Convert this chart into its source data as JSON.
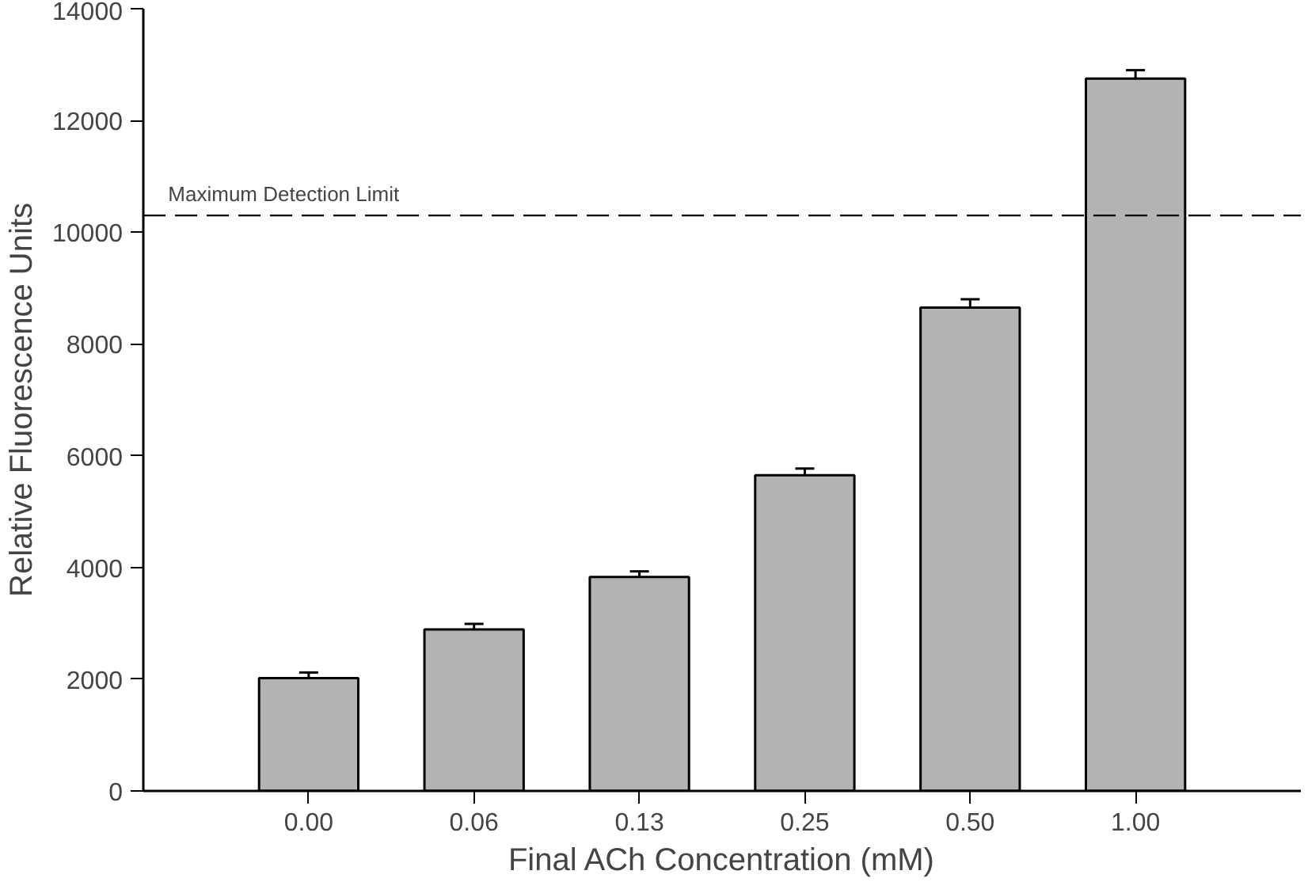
{
  "chart_data": {
    "type": "bar",
    "xlabel": "Final ACh Concentration (mM)",
    "ylabel": "Relative Fluorescence Units",
    "categories": [
      "0.00",
      "0.06",
      "0.13",
      "0.25",
      "0.50",
      "1.00"
    ],
    "values": [
      2020,
      2890,
      3830,
      5650,
      8650,
      12750
    ],
    "errors": [
      100,
      100,
      100,
      120,
      150,
      150
    ],
    "color": "#b3b3b3",
    "ylim": [
      0,
      14000
    ],
    "yticks": [
      0,
      2000,
      4000,
      6000,
      8000,
      10000,
      12000,
      14000
    ],
    "grid": false,
    "ref_lines": [
      {
        "axis": "y",
        "value": 10300,
        "label": "Maximum Detection Limit",
        "line_style": "dashed",
        "color": "#000000"
      }
    ]
  }
}
